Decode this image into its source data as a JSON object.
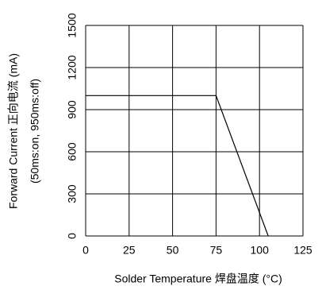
{
  "chart_data": {
    "type": "line",
    "x_label": "Solder Temperature 焊盘温度 (°C)",
    "y_label": "Forward Current 正向电流 (mA)",
    "y_label_2": "(50ms:on, 950ms:off)",
    "x": [
      0,
      75,
      105
    ],
    "series": [
      {
        "color": "#000000",
        "values": [
          1000,
          1000,
          0
        ]
      }
    ],
    "xlim": [
      0,
      125
    ],
    "xticks": [
      0,
      25,
      50,
      75,
      100,
      125
    ],
    "ylim": [
      0,
      1500
    ],
    "yticks": [
      0,
      300,
      600,
      900,
      1200,
      1500
    ],
    "grid": true
  }
}
